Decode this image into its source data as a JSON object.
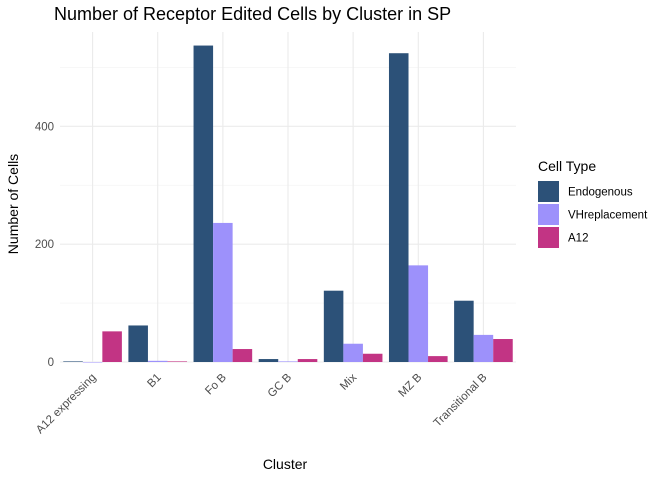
{
  "chart_data": {
    "type": "bar",
    "title": "Number of Receptor Edited Cells by Cluster in SP",
    "xlabel": "Cluster",
    "ylabel": "Number of Cells",
    "categories": [
      "A12 expressing",
      "B1",
      "Fo B",
      "GC B",
      "Mix",
      "MZ B",
      "Transitional B"
    ],
    "series": [
      {
        "name": "Endogenous",
        "color": "#2c5178",
        "values": [
          1,
          62,
          537,
          5,
          121,
          524,
          104
        ]
      },
      {
        "name": "VHreplacement",
        "color": "#9d91fb",
        "values": [
          0,
          2,
          236,
          1,
          31,
          164,
          46
        ]
      },
      {
        "name": "A12",
        "color": "#c23484",
        "values": [
          52,
          1,
          22,
          5,
          14,
          10,
          39
        ]
      }
    ],
    "ylim": [
      0,
      560
    ],
    "yticks": [
      0,
      200,
      400
    ],
    "legend_title": "Cell Type",
    "legend_position": "right",
    "grid": true
  }
}
